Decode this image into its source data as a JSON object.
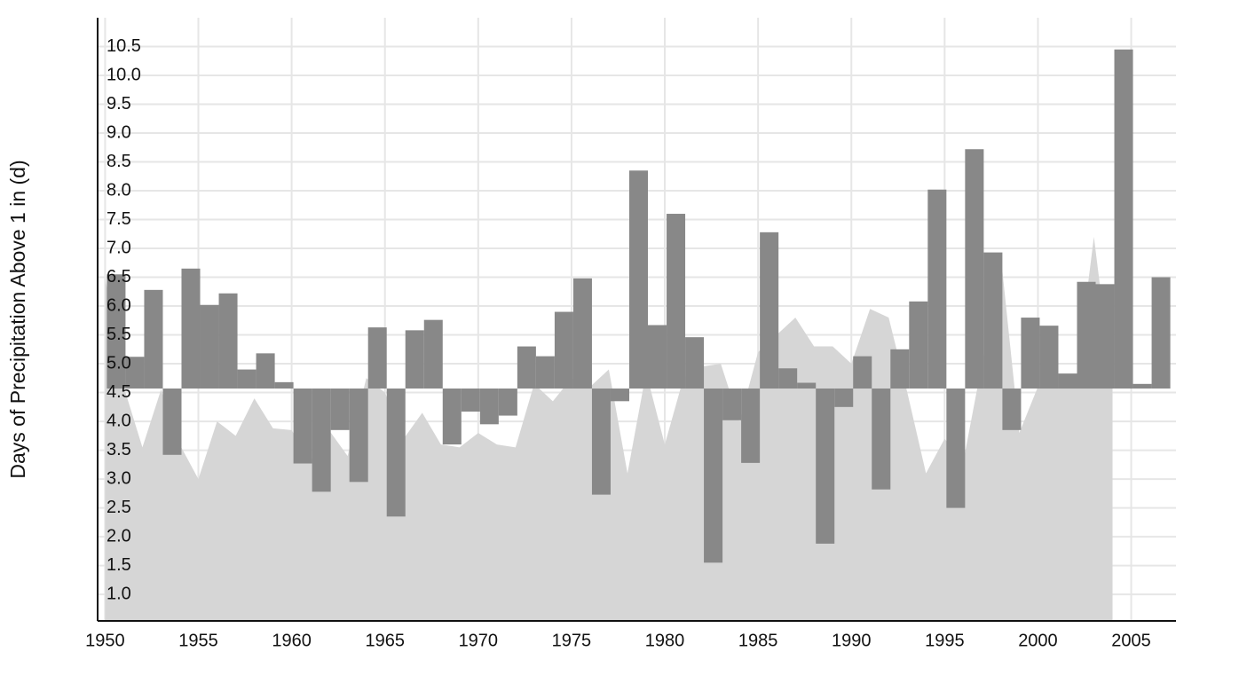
{
  "chart_data": {
    "type": "bar",
    "y_label": "Days of Precipitation Above 1 in (d)",
    "x": [
      1950,
      1951,
      1952,
      1953,
      1954,
      1955,
      1956,
      1957,
      1958,
      1959,
      1960,
      1961,
      1962,
      1963,
      1964,
      1965,
      1966,
      1967,
      1968,
      1969,
      1970,
      1971,
      1972,
      1973,
      1974,
      1975,
      1976,
      1977,
      1978,
      1979,
      1980,
      1981,
      1982,
      1983,
      1984,
      1985,
      1986,
      1987,
      1988,
      1989,
      1990,
      1991,
      1992,
      1993,
      1994,
      1995,
      1996,
      1997,
      1998,
      1999,
      2000,
      2001,
      2002,
      2003,
      2004,
      2005,
      2006
    ],
    "values": [
      6.55,
      5.12,
      6.28,
      3.42,
      6.65,
      6.02,
      6.22,
      4.9,
      5.18,
      4.68,
      3.27,
      2.78,
      3.85,
      2.95,
      5.63,
      2.35,
      5.58,
      5.76,
      3.6,
      4.17,
      3.95,
      4.1,
      5.3,
      5.13,
      5.9,
      6.48,
      2.73,
      4.35,
      8.35,
      5.67,
      7.6,
      5.46,
      1.55,
      4.02,
      3.28,
      7.28,
      4.92,
      4.67,
      1.88,
      4.25,
      5.13,
      2.82,
      5.25,
      6.08,
      8.02,
      2.5,
      8.72,
      6.93,
      3.85,
      5.8,
      5.66,
      4.83,
      6.42,
      6.38,
      10.45,
      4.65,
      6.5
    ],
    "color": "#888888",
    "baseline": 4.57,
    "area_x": [
      1950,
      1951,
      1952,
      1953,
      1954,
      1955,
      1956,
      1957,
      1958,
      1959,
      1960,
      1961,
      1962,
      1963,
      1964,
      1965,
      1966,
      1967,
      1968,
      1969,
      1970,
      1971,
      1972,
      1973,
      1974,
      1975,
      1976,
      1977,
      1978,
      1979,
      1980,
      1981,
      1982,
      1983,
      1984,
      1985,
      1986,
      1987,
      1988,
      1989,
      1990,
      1991,
      1992,
      1993,
      1994,
      1995,
      1996,
      1997,
      1998,
      1999,
      2000,
      2001,
      2002,
      2003,
      2004
    ],
    "area_values": [
      6.5,
      4.6,
      3.55,
      4.55,
      3.6,
      3.0,
      4.0,
      3.75,
      4.4,
      3.88,
      3.85,
      3.3,
      3.85,
      3.4,
      4.75,
      4.5,
      3.7,
      4.15,
      3.6,
      3.55,
      3.8,
      3.6,
      3.55,
      4.65,
      4.35,
      4.75,
      4.6,
      4.9,
      3.1,
      4.85,
      3.6,
      4.75,
      4.95,
      5.0,
      4.0,
      5.2,
      5.5,
      5.8,
      5.3,
      5.3,
      5.0,
      5.95,
      5.8,
      4.5,
      3.1,
      3.7,
      3.3,
      5.0,
      6.9,
      3.8,
      4.6,
      4.6,
      4.6,
      7.2,
      4.6
    ],
    "area_color": "#d6d6d6",
    "xlim": [
      1949.6,
      2007.4
    ],
    "xticks": [
      1950,
      1955,
      1960,
      1965,
      1970,
      1975,
      1980,
      1985,
      1990,
      1995,
      2000,
      2005
    ],
    "ylim": [
      0.54,
      11.0
    ],
    "yticks": [
      {
        "value": 1,
        "label": "1.0"
      },
      1.5,
      {
        "value": 2,
        "label": "2.0"
      },
      2.5,
      {
        "value": 3,
        "label": "3.0"
      },
      3.5,
      {
        "value": 4,
        "label": "4.0"
      },
      4.5,
      {
        "value": 5,
        "label": "5.0"
      },
      5.5,
      {
        "value": 6,
        "label": "6.0"
      },
      6.5,
      {
        "value": 7,
        "label": "7.0"
      },
      7.5,
      {
        "value": 8,
        "label": "8.0"
      },
      8.5,
      {
        "value": 9,
        "label": "9.0"
      },
      9.5,
      {
        "value": 10,
        "label": "10.0"
      },
      10.5
    ],
    "grid": true
  }
}
